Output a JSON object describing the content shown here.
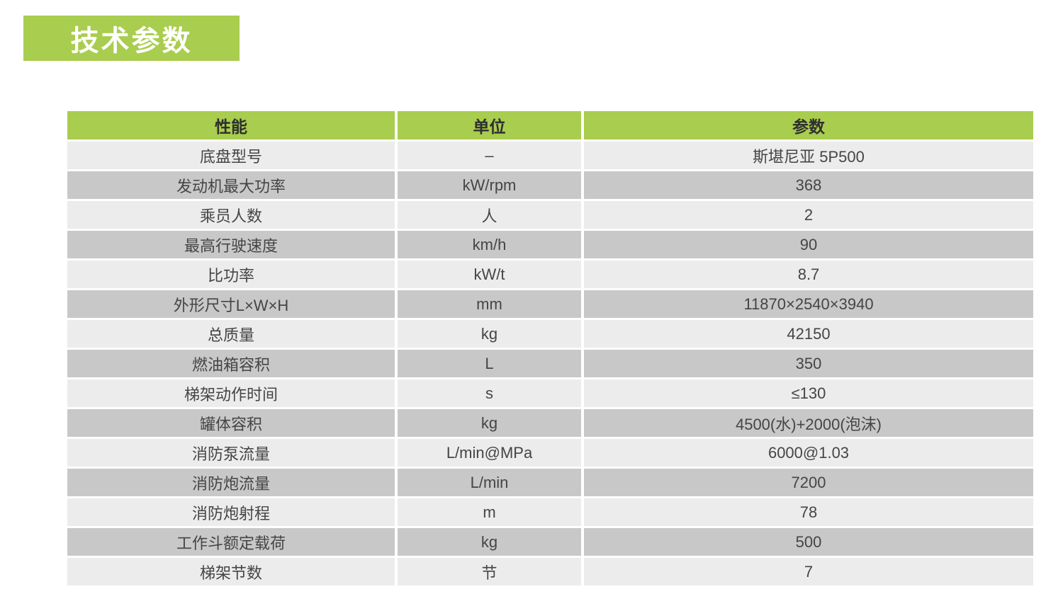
{
  "page": {
    "title_badge": "技术参数"
  },
  "table": {
    "headers": [
      "性能",
      "单位",
      "参数"
    ],
    "rows": [
      {
        "performance": "底盘型号",
        "unit": "–",
        "value": "斯堪尼亚 5P500"
      },
      {
        "performance": "发动机最大功率",
        "unit": "kW/rpm",
        "value": "368"
      },
      {
        "performance": "乘员人数",
        "unit": "人",
        "value": "2"
      },
      {
        "performance": "最高行驶速度",
        "unit": "km/h",
        "value": "90"
      },
      {
        "performance": "比功率",
        "unit": "kW/t",
        "value": "8.7"
      },
      {
        "performance": "外形尺寸L×W×H",
        "unit": "mm",
        "value": "11870×2540×3940"
      },
      {
        "performance": "总质量",
        "unit": "kg",
        "value": "42150"
      },
      {
        "performance": "燃油箱容积",
        "unit": "L",
        "value": "350"
      },
      {
        "performance": "梯架动作时间",
        "unit": "s",
        "value": "≤130"
      },
      {
        "performance": "罐体容积",
        "unit": "kg",
        "value": "4500(水)+2000(泡沫)"
      },
      {
        "performance": "消防泵流量",
        "unit": "L/min@MPa",
        "value": "6000@1.03"
      },
      {
        "performance": "消防炮流量",
        "unit": "L/min",
        "value": "7200"
      },
      {
        "performance": "消防炮射程",
        "unit": "m",
        "value": "78"
      },
      {
        "performance": "工作斗额定载荷",
        "unit": "kg",
        "value": "500"
      },
      {
        "performance": "梯架节数",
        "unit": "节",
        "value": "7"
      }
    ]
  },
  "colors": {
    "accent_green": "#a9cd4e",
    "row_light": "#ececec",
    "row_dark": "#c8c8c8",
    "header_text": "#2f2f2f",
    "cell_text": "#454545",
    "badge_text": "#ffffff"
  }
}
